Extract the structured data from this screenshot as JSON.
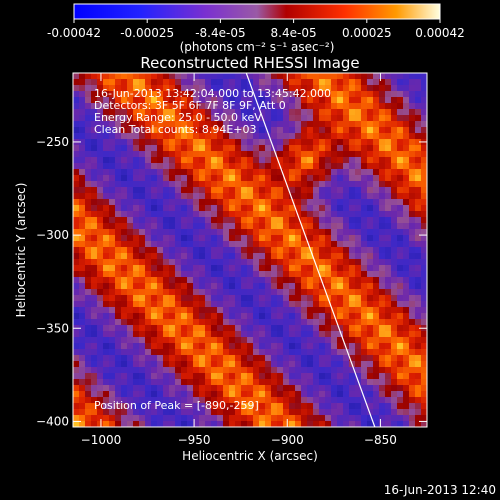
{
  "colorbar": {
    "tick_labels": [
      "-0.00042",
      "-0.00025",
      "-8.4e-05",
      "8.4e-05",
      "0.00025",
      "0.00042"
    ],
    "unit_label": "(photons cm⁻² s⁻¹ asec⁻²)",
    "min": -0.00042,
    "max": 0.00042
  },
  "chart_data": {
    "type": "heatmap",
    "title": "Reconstructed RHESSI Image",
    "xlabel": "Heliocentric X (arcsec)",
    "ylabel": "Heliocentric Y (arcsec)",
    "xlim": [
      -1015,
      -825
    ],
    "ylim": [
      -403,
      -213
    ],
    "x_ticks": [
      -1000,
      -950,
      -900,
      -850
    ],
    "y_ticks": [
      -250,
      -300,
      -350,
      -400
    ],
    "x_tick_labels": [
      "−1000",
      "−950",
      "−900",
      "−850"
    ],
    "y_tick_labels": [
      "−250",
      "−300",
      "−350",
      "−400"
    ],
    "annotations": [
      "16-Jun-2013 13:42:04.000 to 13:45:42.000",
      "Detectors: 3F 5F 6F 7F 8F 9F, Att 0",
      "Energy Range: 25.0 - 50.0 keV",
      "Clean     Total counts: 8.94E+03"
    ],
    "peak_label": "Position of Peak = [-890,-259]",
    "peak": [
      -890,
      -259
    ],
    "limb_line": [
      [
        -922,
        -213
      ],
      [
        -853,
        -403
      ]
    ],
    "colormap": "hot-blue"
  },
  "footer_date": "16-Jun-2013 12:40"
}
